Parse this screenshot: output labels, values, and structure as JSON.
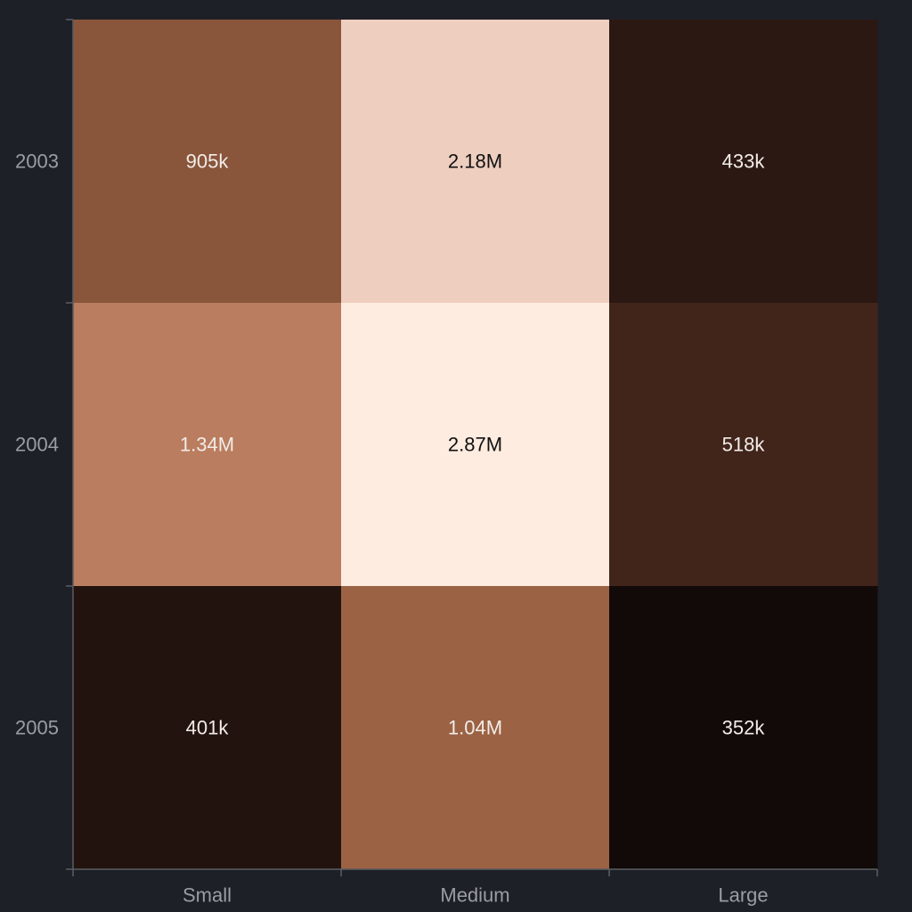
{
  "chart_data": {
    "type": "heatmap",
    "title": "",
    "xlabel": "",
    "ylabel": "",
    "x_categories": [
      "Small",
      "Medium",
      "Large"
    ],
    "y_categories": [
      "2003",
      "2004",
      "2005"
    ],
    "values": [
      [
        905000,
        2180000,
        433000
      ],
      [
        1340000,
        2870000,
        518000
      ],
      [
        401000,
        1040000,
        352000
      ]
    ],
    "labels": [
      [
        "905k",
        "2.18M",
        "433k"
      ],
      [
        "1.34M",
        "2.87M",
        "518k"
      ],
      [
        "401k",
        "1.04M",
        "352k"
      ]
    ],
    "colorscale": [
      "#120a09",
      "#4a2a1f",
      "#975e41",
      "#b87a5c",
      "#ebcaba",
      "#ffece0"
    ],
    "legend": "none",
    "grid": false
  },
  "colors": {
    "background": "#1e2027",
    "axis": "#5a5d63",
    "tick_text": "#9a9da3",
    "label_light": "#f2ece8",
    "label_dark": "#111111"
  }
}
